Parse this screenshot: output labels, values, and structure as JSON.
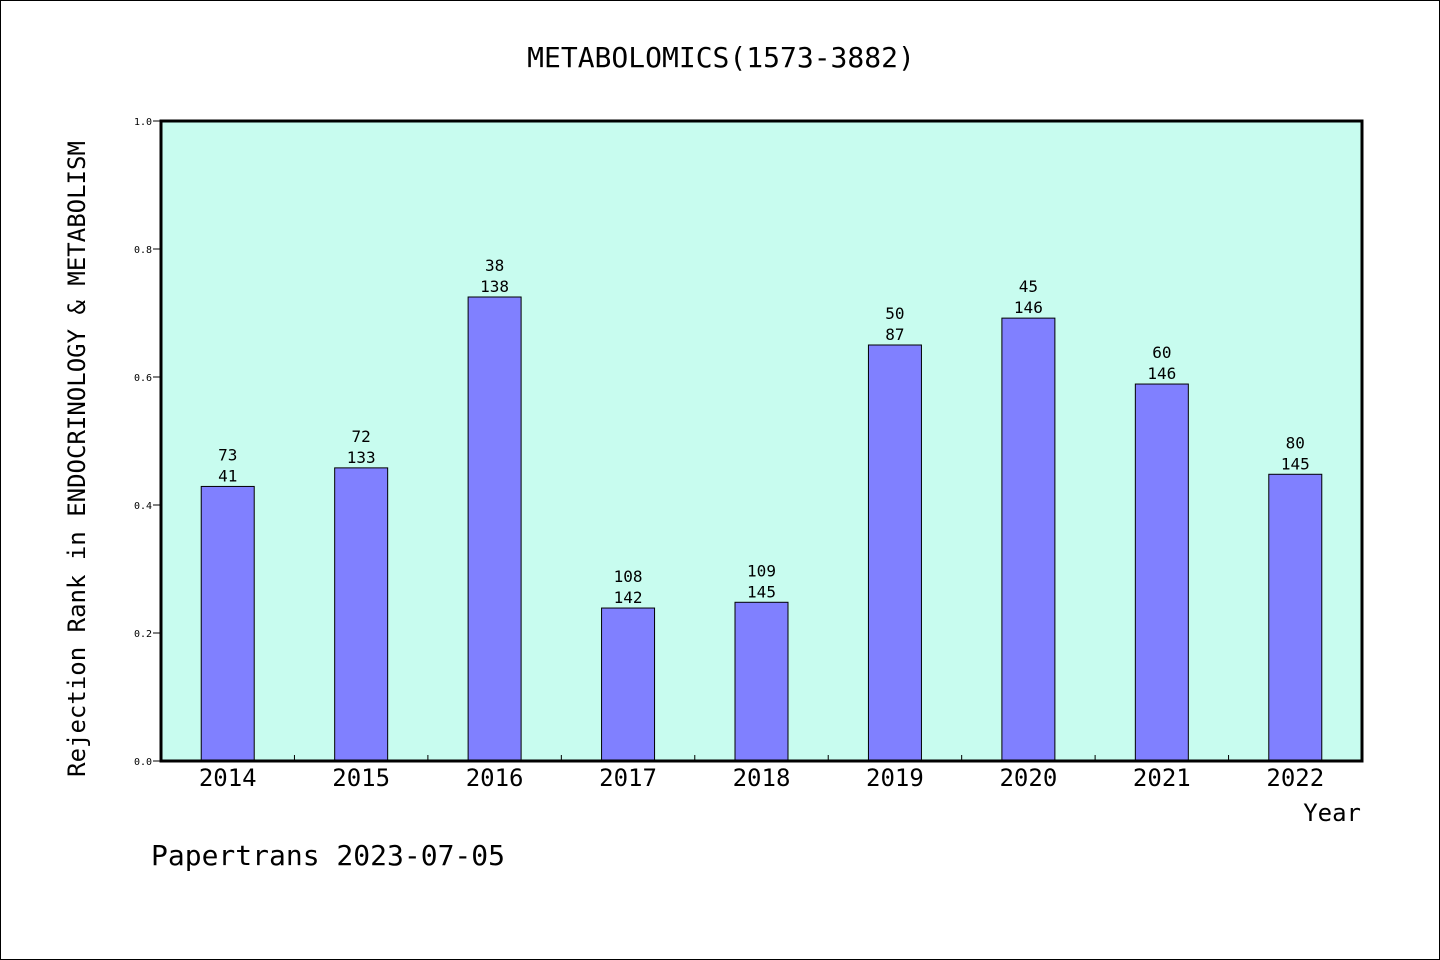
{
  "chart_data": {
    "type": "bar",
    "title": "METABOLOMICS(1573-3882)",
    "xlabel": "Year",
    "ylabel": "Rejection Rank in ENDOCRINOLOGY & METABOLISM",
    "ylim": [
      0,
      1.0
    ],
    "yticks": [
      "0.0",
      "0.2",
      "0.4",
      "0.6",
      "0.8",
      "1.0"
    ],
    "categories": [
      "2014",
      "2015",
      "2016",
      "2017",
      "2018",
      "2019",
      "2020",
      "2021",
      "2022"
    ],
    "values": [
      0.429,
      0.458,
      0.725,
      0.239,
      0.248,
      0.65,
      0.692,
      0.589,
      0.448
    ],
    "labels_top": [
      "73",
      "72",
      "38",
      "108",
      "109",
      "50",
      "45",
      "60",
      "80"
    ],
    "labels_bottom": [
      "41",
      "133",
      "138",
      "142",
      "145",
      "87",
      "146",
      "146",
      "145"
    ],
    "bar_color": "#8080ff",
    "plot_bg": "#c8fcef",
    "grid": false
  },
  "footer": "Papertrans 2023-07-05"
}
